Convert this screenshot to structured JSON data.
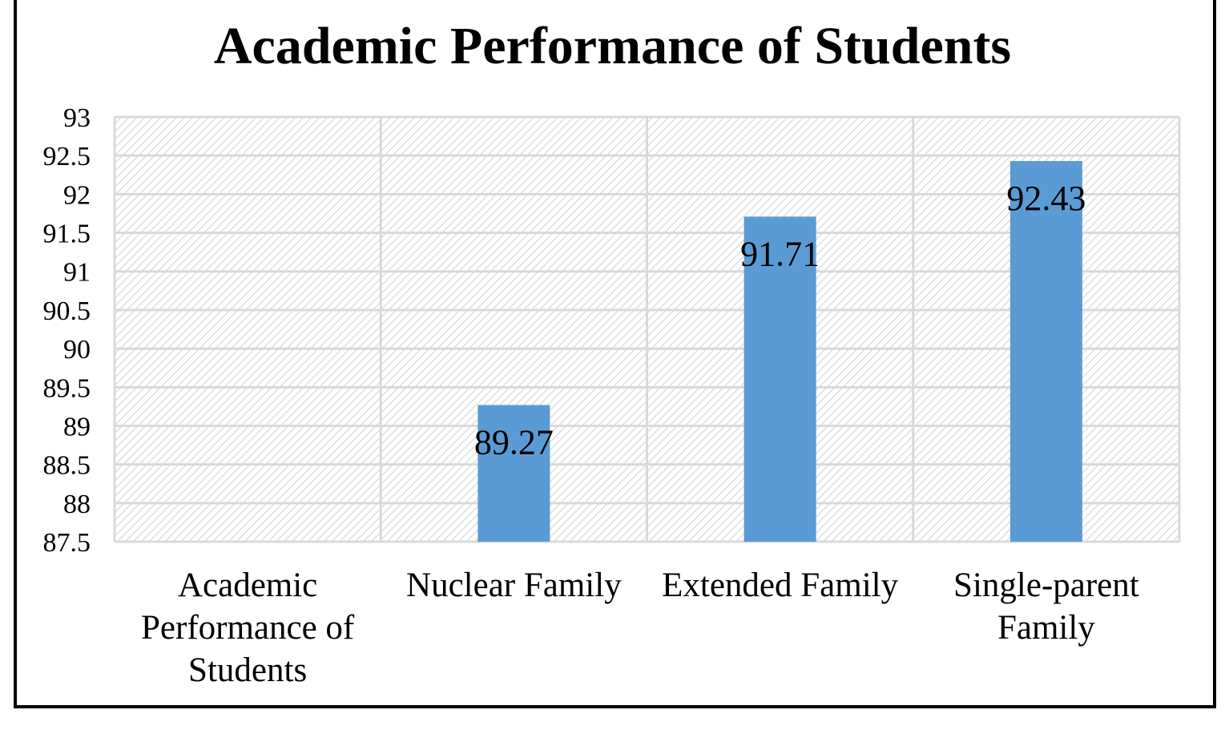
{
  "chart_data": {
    "type": "bar",
    "title": "Academic Performance of Students",
    "categories": [
      [
        "Academic",
        "Performance of",
        "Students"
      ],
      [
        "Nuclear Family"
      ],
      [
        "Extended Family"
      ],
      [
        "Single-parent",
        "Family"
      ]
    ],
    "values": [
      null,
      89.27,
      91.71,
      92.43
    ],
    "data_labels": [
      "",
      "89.27",
      "91.71",
      "92.43"
    ],
    "yticks": [
      "93",
      "92.5",
      "92",
      "91.5",
      "91",
      "90.5",
      "90",
      "89.5",
      "89",
      "88.5",
      "88",
      "87.5"
    ],
    "ylim": [
      87.5,
      93
    ],
    "grid": true,
    "legend": "none",
    "colors": {
      "bar": "#5B9BD5",
      "grid": "#d9d9d9",
      "hatch": "#d4d4d4",
      "border": "#000000"
    }
  }
}
